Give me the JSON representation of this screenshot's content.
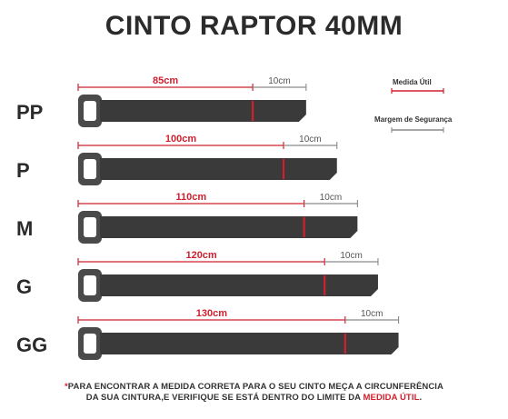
{
  "title": "CINTO RAPTOR 40MM",
  "legend": {
    "useful": "Medida Útil",
    "margin": "Margem de Segurança"
  },
  "colors": {
    "belt": "#3a3a3a",
    "buckle": "#4a4a4a",
    "measure": "#d0202e",
    "margin": "#8a8a8a",
    "text": "#2b2b2b"
  },
  "sizes": [
    {
      "size": "PP",
      "useful_label": "85cm",
      "margin_label": "10cm",
      "useful_cm": 85,
      "margin_cm": 10
    },
    {
      "size": "P",
      "useful_label": "100cm",
      "margin_label": "10cm",
      "useful_cm": 100,
      "margin_cm": 10
    },
    {
      "size": "M",
      "useful_label": "110cm",
      "margin_label": "10cm",
      "useful_cm": 110,
      "margin_cm": 10
    },
    {
      "size": "G",
      "useful_label": "120cm",
      "margin_label": "10cm",
      "useful_cm": 120,
      "margin_cm": 10
    },
    {
      "size": "GG",
      "useful_label": "130cm",
      "margin_label": "10cm",
      "useful_cm": 130,
      "margin_cm": 10
    }
  ],
  "footer": {
    "line1": "*PARA ENCONTRAR A MEDIDA CORRETA PARA O SEU CINTO MEÇA A CIRCUNFERÊNCIA",
    "line2_prefix": "DA SUA CINTURA,E VERIFIQUE SE ESTÁ DENTRO DO LIMITE DA ",
    "line2_highlight": "MEDIDA ÚTIL",
    "line2_suffix": "."
  }
}
